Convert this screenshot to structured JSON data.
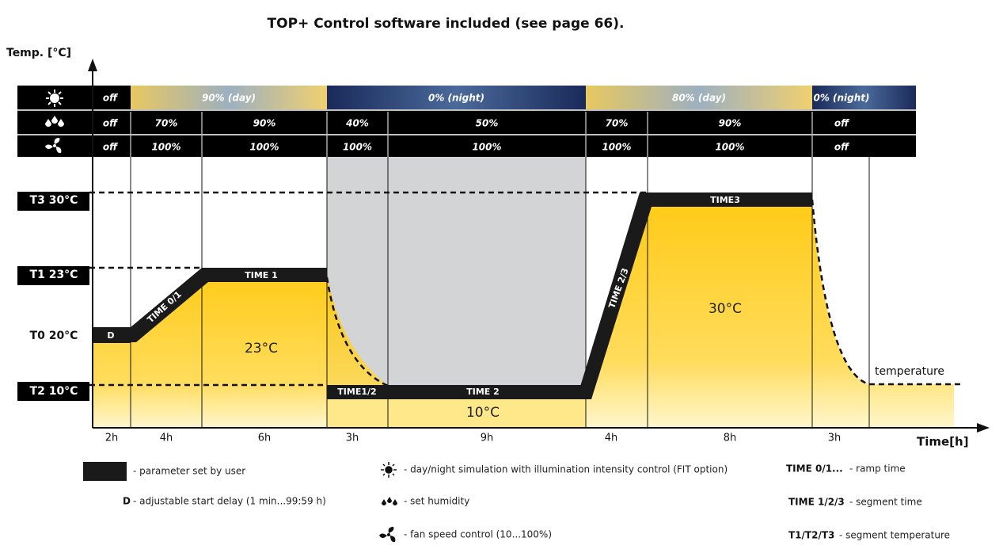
{
  "title": "TOP+ Control software included (see page 66).",
  "y_axis_label": "Temp. [°C]",
  "x_axis_label": "Time[h]",
  "rows": {
    "light": [
      "off",
      "90% (day)",
      "0% (night)",
      "80% (day)",
      "0% (night)"
    ],
    "humidity": [
      "off",
      "70%",
      "90%",
      "40%",
      "50%",
      "70%",
      "90%",
      "off"
    ],
    "fan": [
      "off",
      "100%",
      "100%",
      "100%",
      "100%",
      "100%",
      "100%",
      "off"
    ]
  },
  "temperatures": [
    "T3 30°C",
    "T1 23°C",
    "T0 20°C",
    "T2 10°C"
  ],
  "segments": [
    "D",
    "TIME 0/1",
    "TIME 1",
    "TIME1/2",
    "TIME 2",
    "TIME 2/3",
    "TIME3"
  ],
  "region_labels": [
    "23°C",
    "10°C",
    "30°C"
  ],
  "curve_label": "temperature",
  "durations": [
    "2h",
    "4h",
    "6h",
    "3h",
    "9h",
    "4h",
    "8h",
    "3h"
  ],
  "legend": {
    "user_parameter": "- parameter set by user",
    "delay_key": "D",
    "delay": "- adjustable start delay (1 min...99:59 h)",
    "light": "- day/night simulation with illumination intensity control (FIT option)",
    "humidity": "- set humidity",
    "fan": "- fan speed control (10...100%)",
    "ramp_key": "TIME 0/1...",
    "ramp": "- ramp time",
    "segment_key": "TIME 1/2/3",
    "segment": "- segment time",
    "temp_key": "T1/T2/T3",
    "temp": "- segment temperature"
  }
}
